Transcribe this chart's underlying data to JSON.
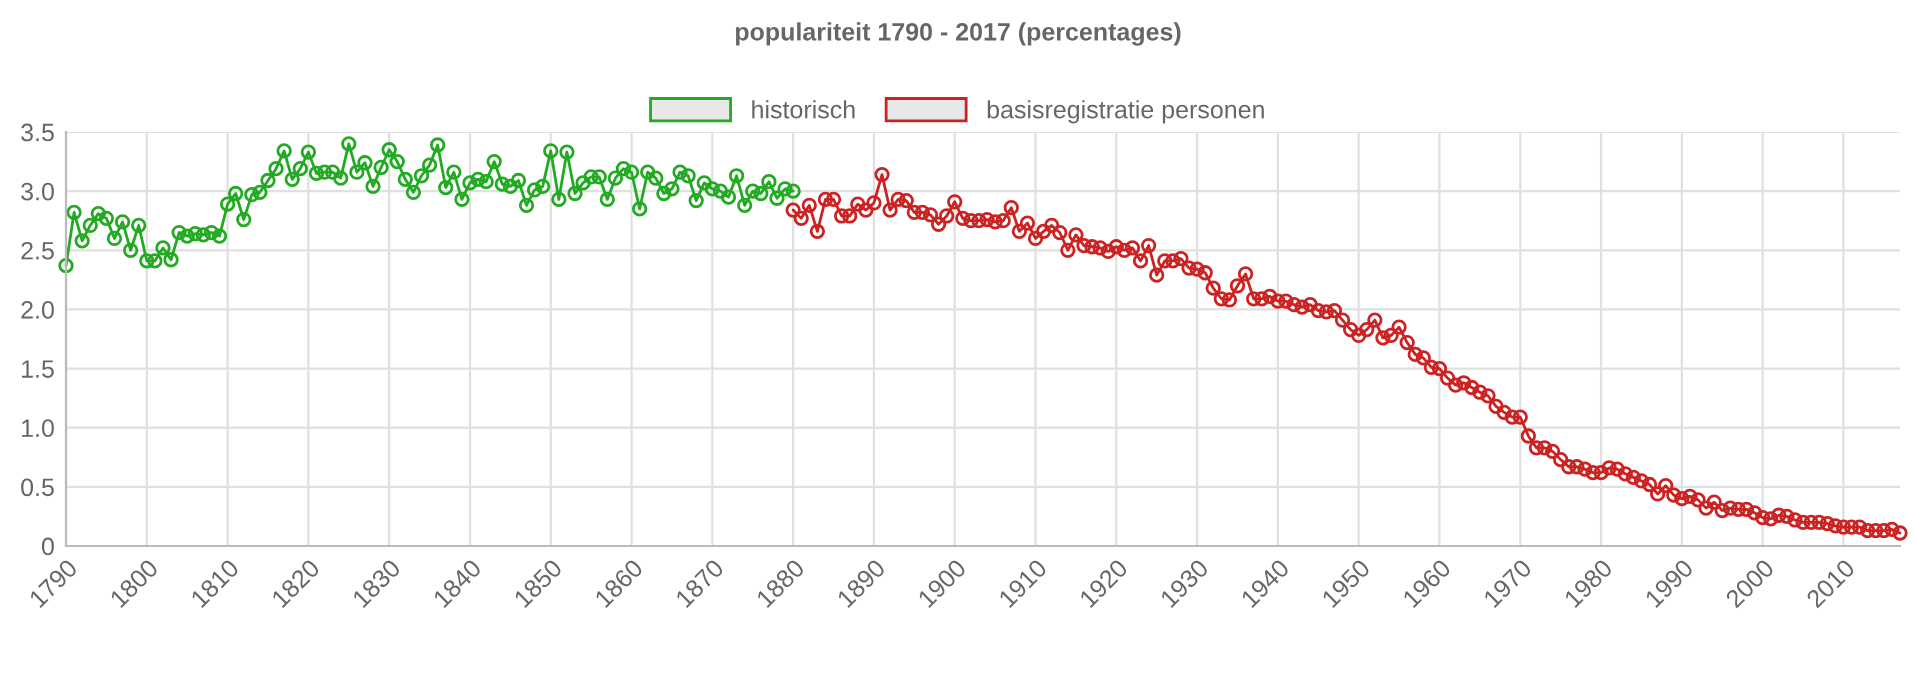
{
  "chart_data": {
    "type": "line",
    "title": "populariteit 1790 - 2017 (percentages)",
    "series": [
      {
        "name": "historisch",
        "color": "#22aa22",
        "x": [
          1790,
          1791,
          1792,
          1793,
          1794,
          1795,
          1796,
          1797,
          1798,
          1799,
          1800,
          1801,
          1802,
          1803,
          1804,
          1805,
          1806,
          1807,
          1808,
          1809,
          1810,
          1811,
          1812,
          1813,
          1814,
          1815,
          1816,
          1817,
          1818,
          1819,
          1820,
          1821,
          1822,
          1823,
          1824,
          1825,
          1826,
          1827,
          1828,
          1829,
          1830,
          1831,
          1832,
          1833,
          1834,
          1835,
          1836,
          1837,
          1838,
          1839,
          1840,
          1841,
          1842,
          1843,
          1844,
          1845,
          1846,
          1847,
          1848,
          1849,
          1850,
          1851,
          1852,
          1853,
          1854,
          1855,
          1856,
          1857,
          1858,
          1859,
          1860,
          1861,
          1862,
          1863,
          1864,
          1865,
          1866,
          1867,
          1868,
          1869,
          1870,
          1871,
          1872,
          1873,
          1874,
          1875,
          1876,
          1877,
          1878,
          1879,
          1880
        ],
        "values": [
          2.37,
          2.82,
          2.58,
          2.71,
          2.81,
          2.77,
          2.6,
          2.74,
          2.5,
          2.71,
          2.41,
          2.41,
          2.52,
          2.42,
          2.65,
          2.62,
          2.64,
          2.63,
          2.65,
          2.62,
          2.89,
          2.98,
          2.76,
          2.97,
          2.99,
          3.09,
          3.19,
          3.34,
          3.1,
          3.19,
          3.33,
          3.15,
          3.16,
          3.16,
          3.11,
          3.4,
          3.16,
          3.24,
          3.04,
          3.2,
          3.35,
          3.25,
          3.1,
          2.99,
          3.13,
          3.22,
          3.39,
          3.03,
          3.16,
          2.93,
          3.07,
          3.1,
          3.08,
          3.25,
          3.06,
          3.04,
          3.09,
          2.88,
          3.01,
          3.04,
          3.34,
          2.93,
          3.33,
          2.98,
          3.07,
          3.12,
          3.12,
          2.93,
          3.11,
          3.19,
          3.16,
          2.85,
          3.16,
          3.11,
          2.98,
          3.02,
          3.16,
          3.13,
          2.92,
          3.07,
          3.02,
          3.0,
          2.95,
          3.13,
          2.88,
          3.0,
          2.98,
          3.08,
          2.94,
          3.02,
          3.0
        ]
      },
      {
        "name": "basisregistratie personen",
        "color": "#cc2222",
        "x": [
          1880,
          1881,
          1882,
          1883,
          1884,
          1885,
          1886,
          1887,
          1888,
          1889,
          1890,
          1891,
          1892,
          1893,
          1894,
          1895,
          1896,
          1897,
          1898,
          1899,
          1900,
          1901,
          1902,
          1903,
          1904,
          1905,
          1906,
          1907,
          1908,
          1909,
          1910,
          1911,
          1912,
          1913,
          1914,
          1915,
          1916,
          1917,
          1918,
          1919,
          1920,
          1921,
          1922,
          1923,
          1924,
          1925,
          1926,
          1927,
          1928,
          1929,
          1930,
          1931,
          1932,
          1933,
          1934,
          1935,
          1936,
          1937,
          1938,
          1939,
          1940,
          1941,
          1942,
          1943,
          1944,
          1945,
          1946,
          1947,
          1948,
          1949,
          1950,
          1951,
          1952,
          1953,
          1954,
          1955,
          1956,
          1957,
          1958,
          1959,
          1960,
          1961,
          1962,
          1963,
          1964,
          1965,
          1966,
          1967,
          1968,
          1969,
          1970,
          1971,
          1972,
          1973,
          1974,
          1975,
          1976,
          1977,
          1978,
          1979,
          1980,
          1981,
          1982,
          1983,
          1984,
          1985,
          1986,
          1987,
          1988,
          1989,
          1990,
          1991,
          1992,
          1993,
          1994,
          1995,
          1996,
          1997,
          1998,
          1999,
          2000,
          2001,
          2002,
          2003,
          2004,
          2005,
          2006,
          2007,
          2008,
          2009,
          2010,
          2011,
          2012,
          2013,
          2014,
          2015,
          2016,
          2017
        ],
        "values": [
          2.84,
          2.77,
          2.88,
          2.66,
          2.93,
          2.93,
          2.79,
          2.79,
          2.89,
          2.84,
          2.9,
          3.14,
          2.84,
          2.93,
          2.92,
          2.82,
          2.82,
          2.8,
          2.72,
          2.79,
          2.91,
          2.77,
          2.75,
          2.75,
          2.76,
          2.74,
          2.75,
          2.86,
          2.66,
          2.73,
          2.6,
          2.66,
          2.71,
          2.65,
          2.5,
          2.63,
          2.54,
          2.53,
          2.52,
          2.49,
          2.53,
          2.5,
          2.52,
          2.41,
          2.54,
          2.29,
          2.41,
          2.41,
          2.43,
          2.35,
          2.34,
          2.31,
          2.18,
          2.09,
          2.08,
          2.2,
          2.3,
          2.09,
          2.09,
          2.11,
          2.07,
          2.07,
          2.04,
          2.02,
          2.04,
          1.99,
          1.98,
          1.99,
          1.91,
          1.83,
          1.78,
          1.83,
          1.91,
          1.76,
          1.78,
          1.85,
          1.72,
          1.62,
          1.59,
          1.51,
          1.5,
          1.42,
          1.36,
          1.38,
          1.34,
          1.3,
          1.27,
          1.18,
          1.13,
          1.09,
          1.09,
          0.93,
          0.83,
          0.83,
          0.8,
          0.73,
          0.67,
          0.67,
          0.65,
          0.62,
          0.62,
          0.66,
          0.65,
          0.61,
          0.58,
          0.55,
          0.52,
          0.44,
          0.51,
          0.43,
          0.4,
          0.42,
          0.39,
          0.32,
          0.37,
          0.3,
          0.32,
          0.31,
          0.31,
          0.28,
          0.24,
          0.23,
          0.26,
          0.25,
          0.22,
          0.2,
          0.2,
          0.2,
          0.19,
          0.17,
          0.16,
          0.16,
          0.16,
          0.13,
          0.13,
          0.13,
          0.14,
          0.11
        ]
      }
    ],
    "xlim": [
      1790,
      2017
    ],
    "xticks": [
      1790,
      1800,
      1810,
      1820,
      1830,
      1840,
      1850,
      1860,
      1870,
      1880,
      1890,
      1900,
      1910,
      1920,
      1930,
      1940,
      1950,
      1960,
      1970,
      1980,
      1990,
      2000,
      2010
    ],
    "ylim": [
      0,
      3.5
    ],
    "yticks": [
      {
        "value": 0,
        "label": "0"
      },
      {
        "value": 0.5,
        "label": "0.5"
      },
      {
        "value": 1,
        "label": "1.0"
      },
      {
        "value": 1.5,
        "label": "1.5"
      },
      {
        "value": 2,
        "label": "2.0"
      },
      {
        "value": 2.5,
        "label": "2.5"
      },
      {
        "value": 3,
        "label": "3.0"
      },
      {
        "value": 3.5,
        "label": "3.5"
      }
    ],
    "grid": true,
    "legend": "top",
    "marker": "circle",
    "line_style": "solid"
  }
}
